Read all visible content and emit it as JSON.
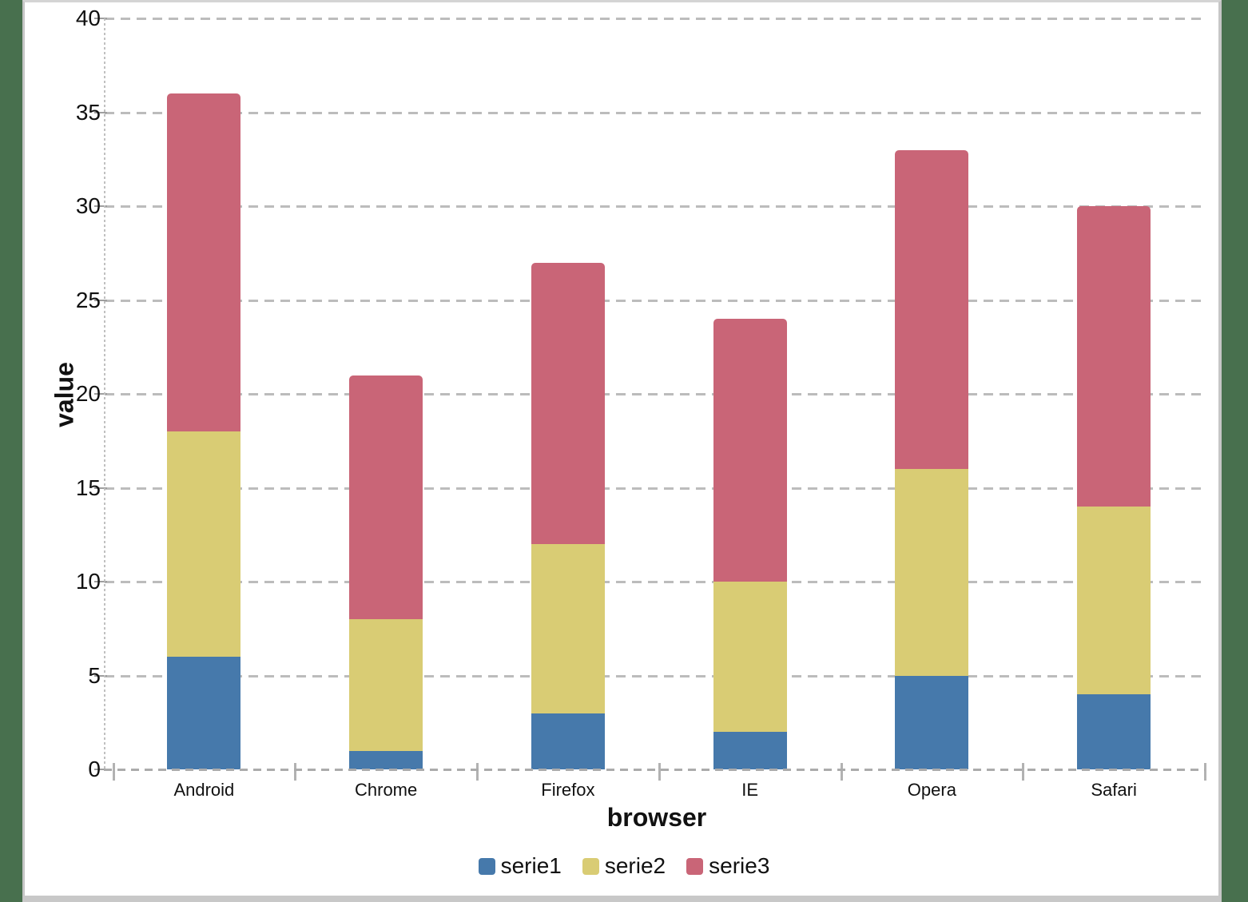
{
  "page": {
    "background_color": "#48704E",
    "panel_color": "#FFFFFF",
    "panel_border_color": "#C8C8C8"
  },
  "chart_data": {
    "type": "bar",
    "stacked": true,
    "title": "",
    "xlabel": "browser",
    "ylabel": "value",
    "categories": [
      "Android",
      "Chrome",
      "Firefox",
      "IE",
      "Opera",
      "Safari"
    ],
    "series": [
      {
        "name": "serie1",
        "color": "#4679AB",
        "values": [
          6,
          1,
          3,
          2,
          5,
          4
        ]
      },
      {
        "name": "serie2",
        "color": "#D9CC74",
        "values": [
          12,
          7,
          9,
          8,
          11,
          10
        ]
      },
      {
        "name": "serie3",
        "color": "#C96577",
        "values": [
          18,
          13,
          15,
          14,
          17,
          16
        ]
      }
    ],
    "stack_totals": [
      36,
      21,
      27,
      24,
      33,
      30
    ],
    "ylim": [
      0,
      40
    ],
    "yticks": [
      0,
      5,
      10,
      15,
      20,
      25,
      30,
      35,
      40
    ],
    "grid": "horizontal dashed",
    "gridline_color": "#BCBCBC",
    "text_color": "#111111",
    "legend_position": "bottom"
  }
}
